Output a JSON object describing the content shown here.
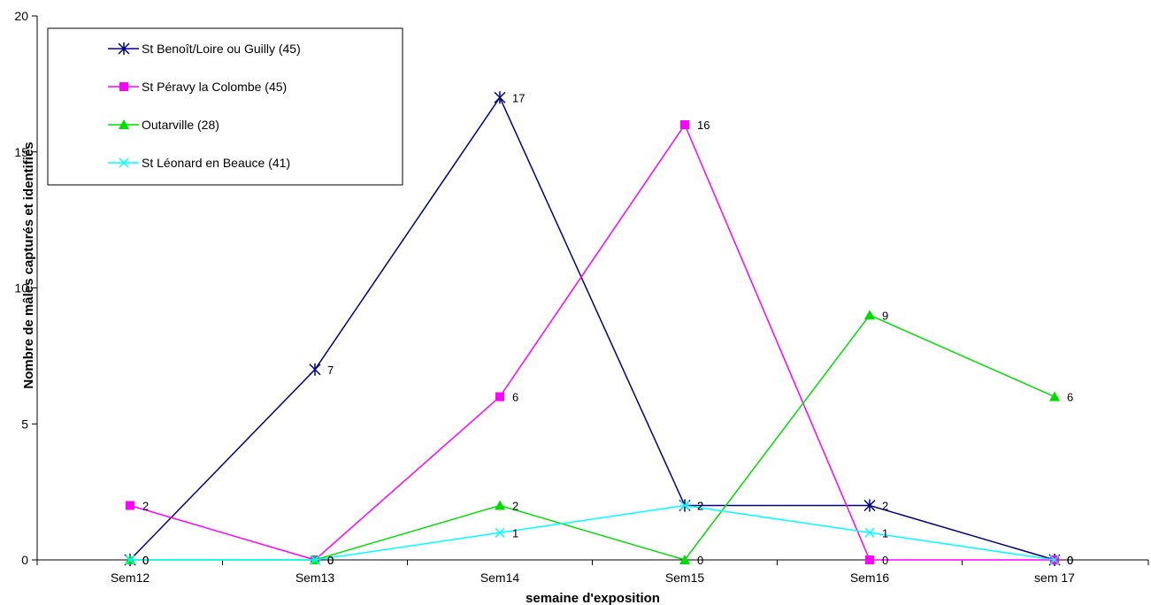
{
  "chart_data": {
    "type": "line",
    "title": "",
    "xlabel": "semaine d'exposition",
    "ylabel": "Nombre de mâles capturés et identifiés",
    "categories": [
      "Sem12",
      "Sem13",
      "Sem14",
      "Sem15",
      "Sem16",
      "sem 17"
    ],
    "ylim": [
      0,
      20
    ],
    "yticks": [
      "0",
      "5",
      "10",
      "15",
      "20"
    ],
    "grid": false,
    "legend_position": "top-left",
    "series": [
      {
        "name": "St Benoît/Loire ou Guilly (45)",
        "color": "#000080",
        "marker": "star",
        "values": [
          0,
          7,
          17,
          2,
          2,
          0
        ]
      },
      {
        "name": "St Péravy la Colombe (45)",
        "color": "#ff00ff",
        "marker": "square",
        "values": [
          2,
          0,
          6,
          16,
          0,
          0
        ]
      },
      {
        "name": "Outarville (28)",
        "color": "#00dd00",
        "marker": "triangle",
        "values": [
          0,
          0,
          2,
          0,
          9,
          6
        ]
      },
      {
        "name": "St Léonard en Beauce  (41)",
        "color": "#00ffff",
        "marker": "x",
        "values": [
          0,
          0,
          1,
          2,
          1,
          0
        ]
      }
    ]
  }
}
